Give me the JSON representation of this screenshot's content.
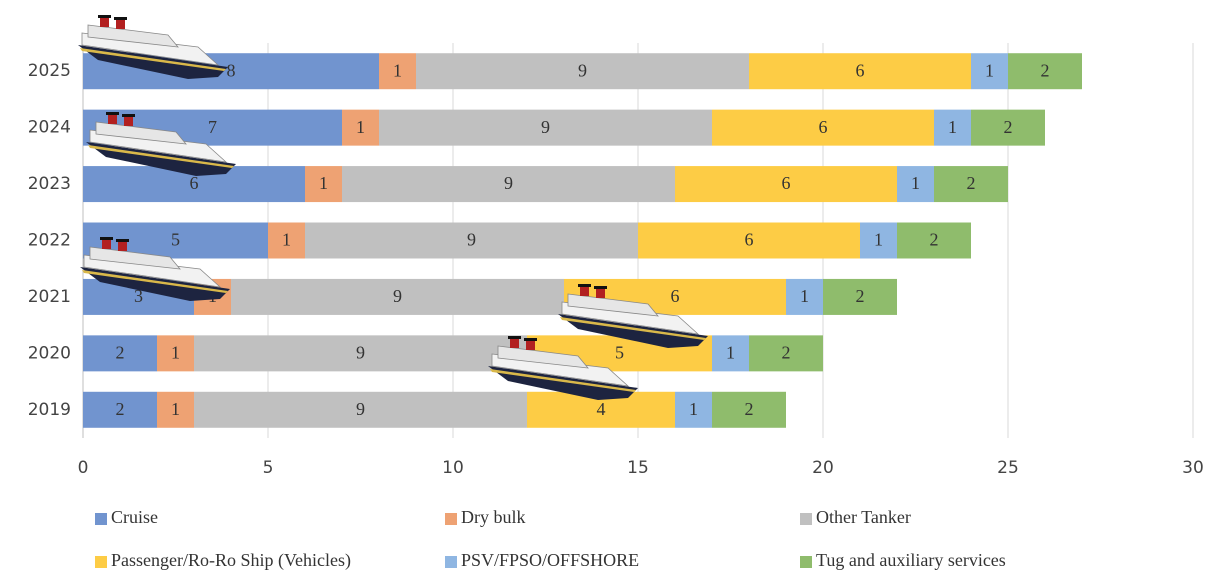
{
  "chart_data": {
    "type": "bar",
    "orientation": "horizontal",
    "stacked": true,
    "categories": [
      "2025",
      "2024",
      "2023",
      "2022",
      "2021",
      "2020",
      "2019"
    ],
    "series": [
      {
        "name": "Cruise",
        "color": "#7194cf",
        "values": [
          8,
          7,
          6,
          5,
          3,
          2,
          2
        ]
      },
      {
        "name": "Dry bulk",
        "color": "#eea273",
        "values": [
          1,
          1,
          1,
          1,
          1,
          1,
          1
        ]
      },
      {
        "name": "Other Tanker",
        "color": "#c0c0c0",
        "values": [
          9,
          9,
          9,
          9,
          9,
          9,
          9
        ]
      },
      {
        "name": "Passenger/Ro-Ro Ship (Vehicles)",
        "color": "#fdcc45",
        "values": [
          6,
          6,
          6,
          6,
          6,
          5,
          4
        ]
      },
      {
        "name": "PSV/FPSO/OFFSHORE",
        "color": "#8fb6e2",
        "values": [
          1,
          1,
          1,
          1,
          1,
          1,
          1
        ]
      },
      {
        "name": "Tug and auxiliary services",
        "color": "#8fbc6c",
        "values": [
          2,
          2,
          2,
          2,
          2,
          2,
          2
        ]
      }
    ],
    "xlim": [
      0,
      30
    ],
    "xticks": [
      0,
      5,
      10,
      15,
      20,
      25,
      30
    ],
    "grid": true
  }
}
